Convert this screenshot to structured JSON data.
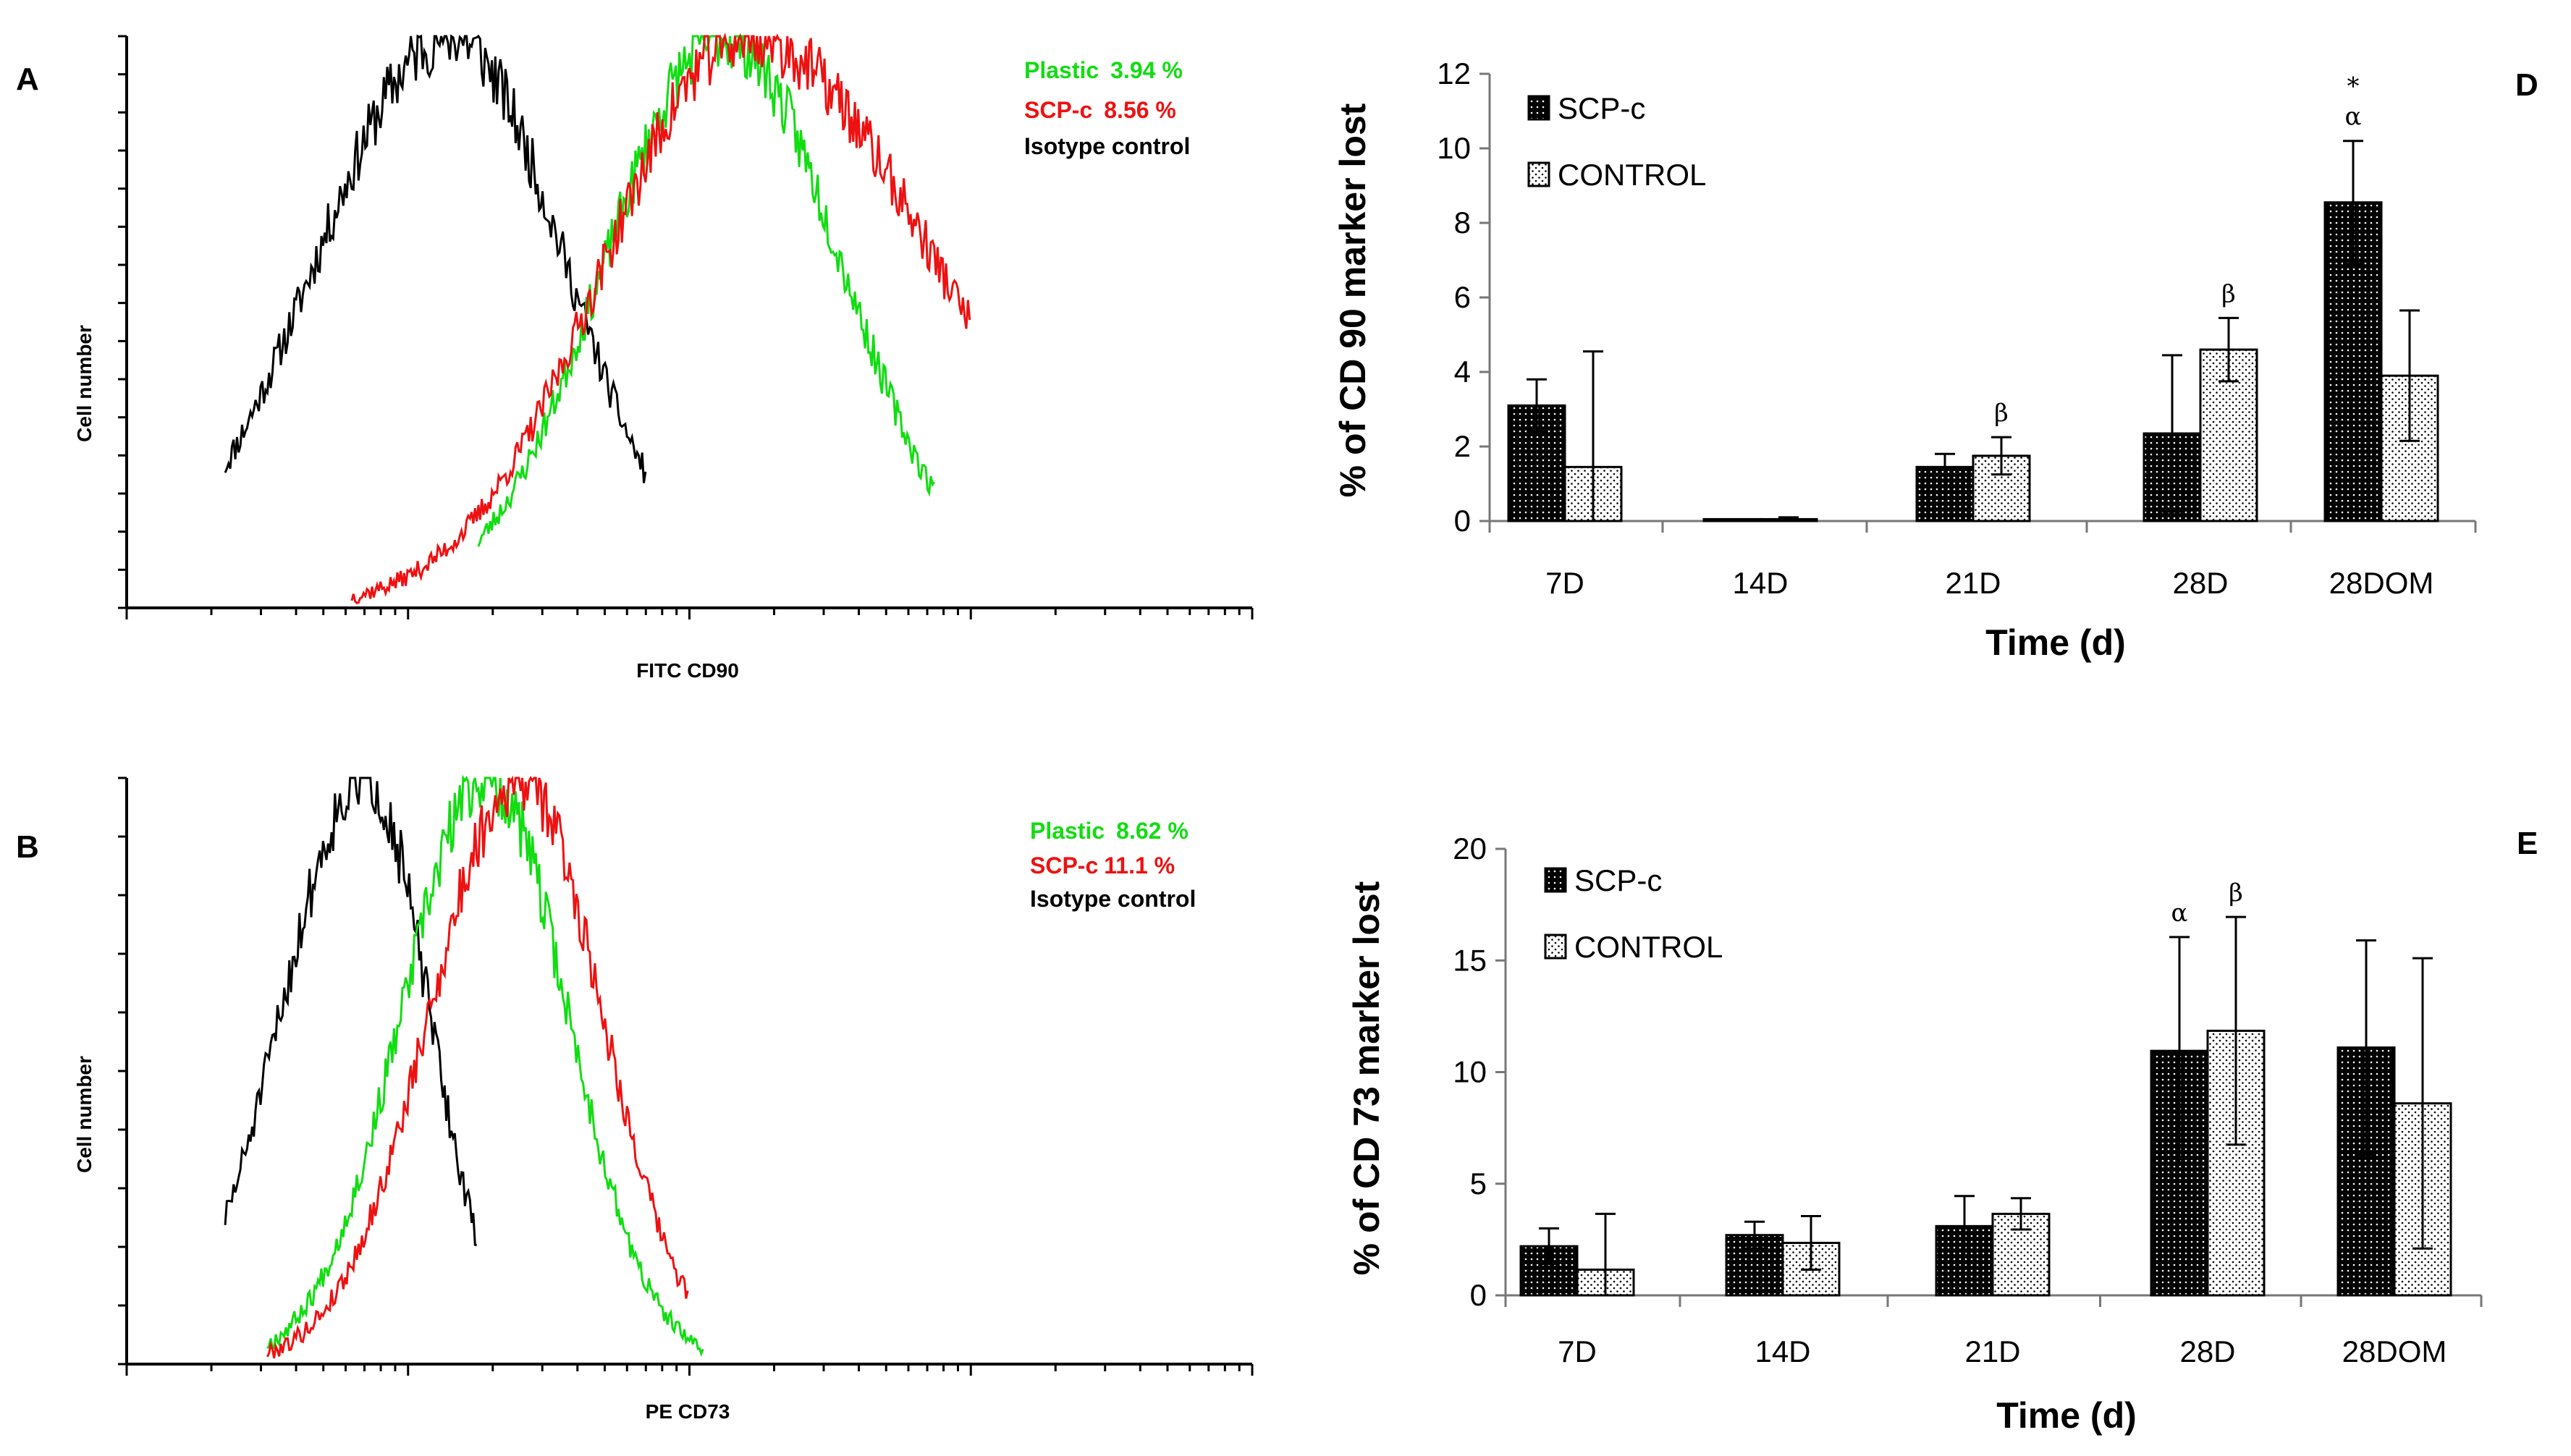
{
  "panels": {
    "A": "A",
    "B": "B",
    "D": "D",
    "E": "E"
  },
  "colors": {
    "plastic": "#11dd11",
    "scp": "#ee1111",
    "isotype": "#000000"
  },
  "chart_data": [
    {
      "panel": "A",
      "type": "line",
      "title": "",
      "xlabel": "FITC CD90",
      "ylabel": "Cell number",
      "x_scale": "log (4 decades)",
      "legend": [
        {
          "name": "Plastic",
          "value": "3.94 %",
          "color": "#11dd11"
        },
        {
          "name": "SCP-c",
          "value": "8.56 %",
          "color": "#ee1111"
        },
        {
          "name": "Isotype control",
          "value": "",
          "color": "#000000"
        }
      ],
      "series": [
        {
          "name": "Isotype control",
          "peak": 1.15,
          "spread": 0.48,
          "skew": 0.85,
          "start": 0.35,
          "end": 1.85,
          "seed": 11
        },
        {
          "name": "Plastic",
          "peak": 2.12,
          "spread": 0.42,
          "skew": 1.0,
          "start": 1.25,
          "end": 2.87,
          "seed": 23
        },
        {
          "name": "SCP-c",
          "peak": 2.2,
          "spread": 0.5,
          "skew": 1.35,
          "start": 0.8,
          "end": 3.0,
          "seed": 37
        }
      ]
    },
    {
      "panel": "B",
      "type": "line",
      "title": "",
      "xlabel": "PE CD73",
      "ylabel": "Cell number",
      "x_scale": "log (4 decades)",
      "legend": [
        {
          "name": "Plastic",
          "value": "8.62 %",
          "color": "#11dd11"
        },
        {
          "name": "SCP-c",
          "value": "11.1 %",
          "color": "#ee1111"
        },
        {
          "name": "Isotype control",
          "value": "",
          "color": "#000000"
        }
      ],
      "series": [
        {
          "name": "Isotype control",
          "peak": 0.85,
          "spread": 0.3,
          "skew": 0.75,
          "start": 0.35,
          "end": 1.25,
          "seed": 51
        },
        {
          "name": "Plastic",
          "peak": 1.28,
          "spread": 0.3,
          "skew": 0.95,
          "start": 0.5,
          "end": 2.05,
          "seed": 67
        },
        {
          "name": "SCP-c",
          "peak": 1.4,
          "spread": 0.32,
          "skew": 0.9,
          "start": 0.5,
          "end": 2.0,
          "seed": 79
        }
      ]
    },
    {
      "panel": "D",
      "type": "bar",
      "title": "",
      "xlabel": "Time (d)",
      "ylabel": "% of CD 90 marker lost",
      "ylim": [
        0,
        12
      ],
      "yticks": [
        "0",
        "2",
        "4",
        "6",
        "8",
        "10",
        "12"
      ],
      "yticks_values": [
        0,
        2,
        4,
        6,
        8,
        10,
        12
      ],
      "categories": [
        "7D",
        "14D",
        "21D",
        "28D",
        "28DOM"
      ],
      "series": [
        {
          "name": "SCP-c",
          "values": [
            3.1,
            0.05,
            1.45,
            2.35,
            8.55
          ],
          "errors": [
            0.7,
            0,
            0.35,
            2.1,
            1.65
          ]
        },
        {
          "name": "CONTROL",
          "values": [
            1.45,
            0.05,
            1.75,
            4.6,
            3.9
          ],
          "errors": [
            3.1,
            0.05,
            0.5,
            0.85,
            1.75
          ]
        }
      ],
      "annotations": [
        {
          "category": "21D",
          "series": "CONTROL",
          "text": "β"
        },
        {
          "category": "28D",
          "series": "CONTROL",
          "text": "β"
        },
        {
          "category": "28DOM",
          "series": "SCP-c",
          "text": "α"
        },
        {
          "category": "28DOM",
          "series": "SCP-c",
          "text": "*"
        }
      ]
    },
    {
      "panel": "E",
      "type": "bar",
      "title": "",
      "xlabel": "Time (d)",
      "ylabel": "% of CD 73 marker lost",
      "ylim": [
        0,
        20
      ],
      "yticks": [
        "0",
        "5",
        "10",
        "15",
        "20"
      ],
      "yticks_values": [
        0,
        5,
        10,
        15,
        20
      ],
      "categories": [
        "7D",
        "14D",
        "21D",
        "28D",
        "28DOM"
      ],
      "series": [
        {
          "name": "SCP-c",
          "values": [
            2.2,
            2.7,
            3.1,
            10.95,
            11.1
          ],
          "errors": [
            0.8,
            0.6,
            1.35,
            5.1,
            4.8
          ]
        },
        {
          "name": "CONTROL",
          "values": [
            1.15,
            2.35,
            3.65,
            11.85,
            8.6
          ],
          "errors": [
            2.5,
            1.2,
            0.7,
            5.1,
            6.5
          ]
        }
      ],
      "annotations": [
        {
          "category": "28D",
          "series": "SCP-c",
          "text": "α"
        },
        {
          "category": "28D",
          "series": "CONTROL",
          "text": "β"
        }
      ]
    }
  ]
}
